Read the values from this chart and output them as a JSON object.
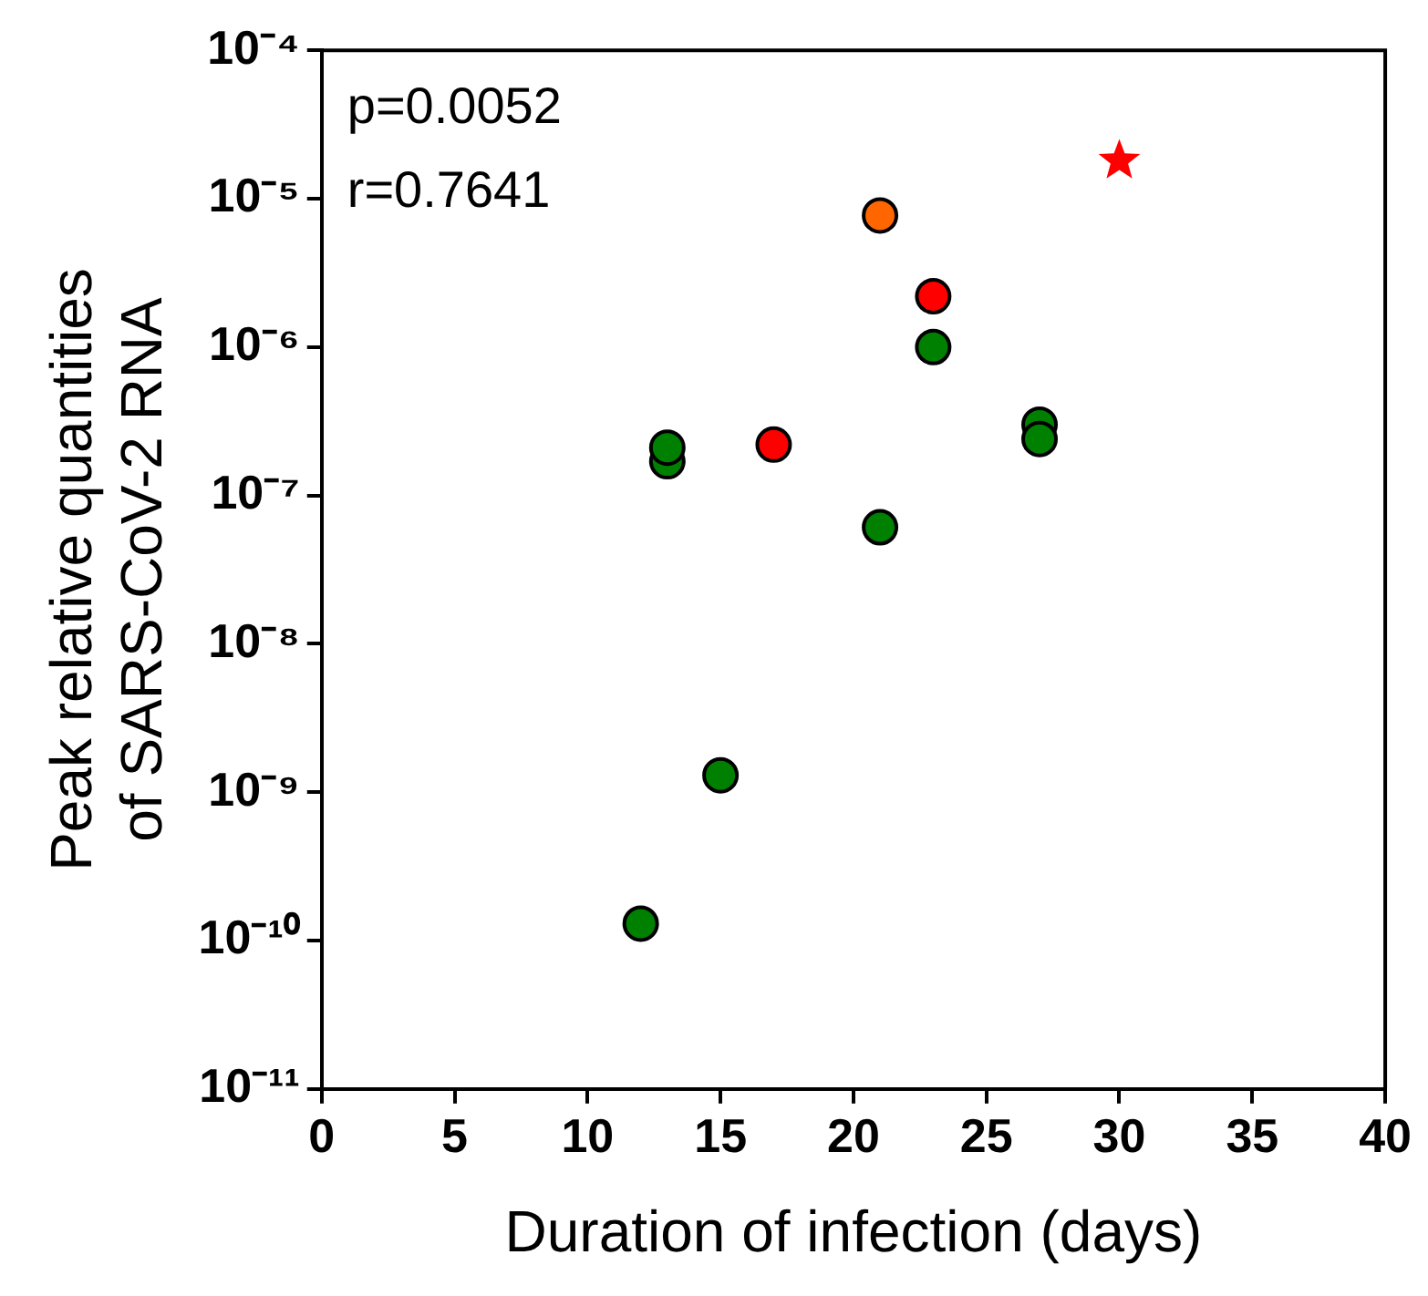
{
  "chart_data": {
    "type": "scatter",
    "xlabel": "Duration of infection (days)",
    "ylabel": "Peak relative quantities\nof SARS-CoV-2 RNA",
    "annotations": [
      "p=0.0052",
      "r=0.7641"
    ],
    "series": [
      {
        "color": "#008000",
        "marker": "circle",
        "x": [
          12,
          13,
          13,
          15,
          21,
          23,
          27,
          27
        ],
        "values": [
          1.3e-10,
          1.7e-07,
          2.1e-07,
          1.3e-09,
          6.1e-08,
          1e-06,
          3e-07,
          2.4e-07
        ]
      },
      {
        "color": "#ff0000",
        "marker": "circle",
        "x": [
          17,
          23
        ],
        "values": [
          2.2e-07,
          2.2e-06
        ]
      },
      {
        "color": "#ff6600",
        "marker": "circle",
        "x": [
          21
        ],
        "values": [
          7.7e-06
        ]
      },
      {
        "color": "#ff0000",
        "marker": "star",
        "x": [
          30
        ],
        "values": [
          1.8e-05
        ]
      }
    ],
    "xlim": [
      0,
      40
    ],
    "xticks": [
      0,
      5,
      10,
      15,
      20,
      25,
      30,
      35,
      40
    ],
    "ylim": [
      1e-11,
      0.0001
    ],
    "yticks": [
      {
        "value": 1e-11,
        "label": "10⁻¹¹"
      },
      {
        "value": 1e-10,
        "label": "10⁻¹⁰"
      },
      {
        "value": 1e-09,
        "label": "10⁻⁹"
      },
      {
        "value": 1e-08,
        "label": "10⁻⁸"
      },
      {
        "value": 1e-07,
        "label": "10⁻⁷"
      },
      {
        "value": 1e-06,
        "label": "10⁻⁶"
      },
      {
        "value": 1e-05,
        "label": "10⁻⁵"
      },
      {
        "value": 0.0001,
        "label": "10⁻⁴"
      }
    ],
    "log": "y",
    "grid": false,
    "legend": false
  }
}
